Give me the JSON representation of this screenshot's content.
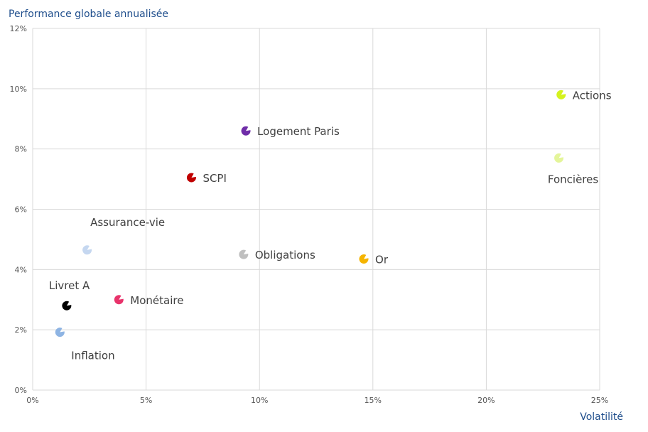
{
  "chart_data": {
    "type": "scatter",
    "title": "",
    "ylabel": "Performance globale annualisée",
    "xlabel": "Volatilité",
    "xlim": [
      0,
      25
    ],
    "ylim": [
      0,
      12
    ],
    "x_ticks": [
      "0%",
      "5%",
      "10%",
      "15%",
      "20%",
      "25%"
    ],
    "y_ticks": [
      "0%",
      "2%",
      "4%",
      "6%",
      "8%",
      "10%",
      "12%"
    ],
    "grid": true,
    "points": [
      {
        "label": "Actions",
        "x": 23.3,
        "y": 9.8,
        "color": "#d4f21e",
        "label_pos": "right"
      },
      {
        "label": "Foncières",
        "x": 23.2,
        "y": 7.7,
        "color": "#e4f59a",
        "label_pos": "below"
      },
      {
        "label": "Logement Paris",
        "x": 9.4,
        "y": 8.6,
        "color": "#6f2da8",
        "label_pos": "right"
      },
      {
        "label": "SCPI",
        "x": 7.0,
        "y": 7.05,
        "color": "#c00000",
        "label_pos": "right"
      },
      {
        "label": "Assurance-vie",
        "x": 2.4,
        "y": 4.65,
        "color": "#c5d7f0",
        "label_pos": "above"
      },
      {
        "label": "Obligations",
        "x": 9.3,
        "y": 4.5,
        "color": "#bfbfbf",
        "label_pos": "right"
      },
      {
        "label": "Or",
        "x": 14.6,
        "y": 4.35,
        "color": "#f5b400",
        "label_pos": "right"
      },
      {
        "label": "Monétaire",
        "x": 3.8,
        "y": 3.0,
        "color": "#e8336b",
        "label_pos": "right"
      },
      {
        "label": "Livret A",
        "x": 1.5,
        "y": 2.8,
        "color": "#000000",
        "label_pos": "above-left"
      },
      {
        "label": "Inflation",
        "x": 1.2,
        "y": 1.92,
        "color": "#8eb4e3",
        "label_pos": "below-right"
      }
    ]
  }
}
